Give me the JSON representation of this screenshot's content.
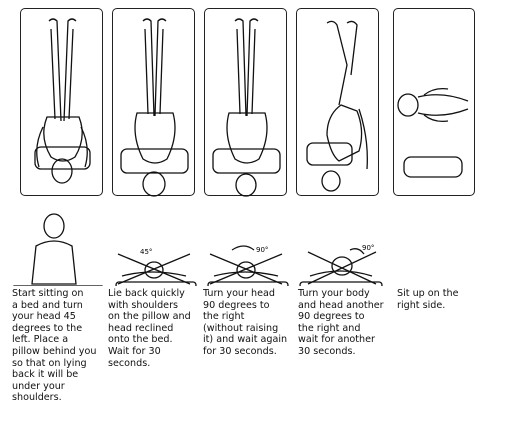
{
  "steps": [
    {
      "caption": "Start sitting on\na bed and turn\nyour head 45\ndegrees to the\nleft. Place a\npillow behind you\nso that on lying\nback it will be\nunder your\nshoulders."
    },
    {
      "caption": "Lie back quickly\nwith shoulders\non the pillow and\nhead reclined\nonto the bed.\nWait for 30\nseconds.",
      "angle_label": "45°"
    },
    {
      "caption": "Turn your head\n90 degrees to\nthe right\n(without raising\nit) and wait again\nfor 30 seconds.",
      "angle_label": "90°"
    },
    {
      "caption": "Turn your body\nand head another\n90 degrees to\nthe right and\nwait for another\n30 seconds.",
      "angle_label": "90°"
    },
    {
      "caption": "Sit up on the\nright side."
    }
  ]
}
